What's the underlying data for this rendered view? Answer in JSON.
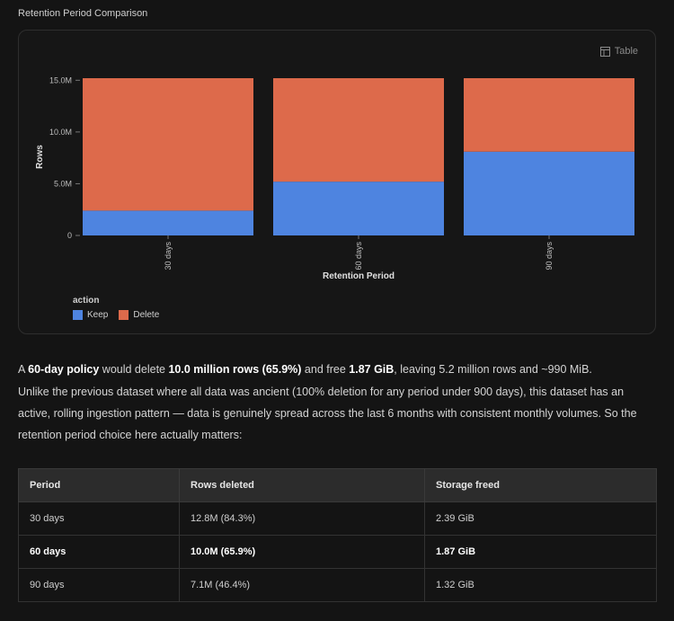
{
  "section_title": "Retention Period Comparison",
  "table_toggle_label": "Table",
  "chart_data": {
    "type": "bar",
    "stacked": true,
    "categories": [
      "30 days",
      "60 days",
      "90 days"
    ],
    "series": [
      {
        "name": "Keep",
        "color": "#4e84e0",
        "values": [
          2.4,
          5.2,
          8.1
        ]
      },
      {
        "name": "Delete",
        "color": "#dd6a4b",
        "values": [
          12.8,
          10.0,
          7.1
        ]
      }
    ],
    "ylabel": "Rows",
    "xlabel": "Retention Period",
    "y_ticks": [
      "0",
      "5.0M",
      "10.0M",
      "15.0M"
    ],
    "y_tick_values": [
      0,
      5,
      10,
      15
    ],
    "ylim": [
      0,
      15.2
    ],
    "legend_title": "action",
    "legend_position": "bottom-left"
  },
  "summary": {
    "prefix": "A ",
    "policy": "60-day policy",
    "mid1": " would delete ",
    "rows_deleted": "10.0 million rows (65.9%)",
    "mid2": " and free ",
    "freed": "1.87 GiB",
    "suffix": ", leaving 5.2 million rows and ~990 MiB."
  },
  "paragraph": "Unlike the previous dataset where all data was ancient (100% deletion for any period under 900 days), this dataset has an active, rolling ingestion pattern — data is genuinely spread across the last 6 months with consistent monthly volumes. So the retention period choice here actually matters:",
  "table": {
    "headers": [
      "Period",
      "Rows deleted",
      "Storage freed"
    ],
    "rows": [
      [
        "30 days",
        "12.8M (84.3%)",
        "2.39 GiB"
      ],
      [
        "60 days",
        "10.0M (65.9%)",
        "1.87 GiB"
      ],
      [
        "90 days",
        "7.1M (46.4%)",
        "1.32 GiB"
      ]
    ]
  }
}
